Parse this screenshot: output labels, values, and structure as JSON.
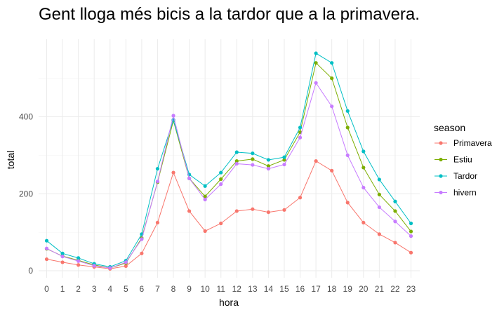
{
  "chart_data": {
    "type": "line",
    "title": "Gent llogа més bicis a la tardor que a la primavera.",
    "xlabel": "hora",
    "ylabel": "total",
    "x": [
      0,
      1,
      2,
      3,
      4,
      5,
      6,
      7,
      8,
      9,
      10,
      11,
      12,
      13,
      14,
      15,
      16,
      17,
      18,
      19,
      20,
      21,
      22,
      23
    ],
    "xlim": [
      0,
      23
    ],
    "ylim": [
      0,
      580
    ],
    "yticks": [
      0,
      200,
      400
    ],
    "grid": true,
    "legend_title": "season",
    "legend_position": "right",
    "series": [
      {
        "name": "Primavera",
        "color": "#F8766D",
        "values": [
          30,
          22,
          15,
          10,
          5,
          12,
          45,
          125,
          255,
          155,
          103,
          123,
          155,
          160,
          152,
          158,
          190,
          285,
          260,
          177,
          125,
          95,
          73,
          47
        ]
      },
      {
        "name": "Estiu",
        "color": "#7CAE00",
        "values": [
          57,
          38,
          27,
          15,
          7,
          20,
          85,
          230,
          390,
          240,
          193,
          238,
          285,
          290,
          272,
          288,
          360,
          540,
          500,
          372,
          268,
          198,
          155,
          102
        ]
      },
      {
        "name": "Tardor",
        "color": "#00BFC4",
        "values": [
          78,
          45,
          33,
          18,
          10,
          26,
          95,
          265,
          392,
          250,
          220,
          255,
          308,
          305,
          288,
          295,
          372,
          565,
          540,
          415,
          310,
          237,
          180,
          123
        ]
      },
      {
        "name": "hivern",
        "color": "#C77CFF",
        "values": [
          58,
          37,
          25,
          13,
          7,
          22,
          82,
          232,
          403,
          240,
          185,
          225,
          278,
          275,
          265,
          276,
          346,
          488,
          427,
          300,
          216,
          165,
          128,
          90
        ]
      }
    ]
  }
}
